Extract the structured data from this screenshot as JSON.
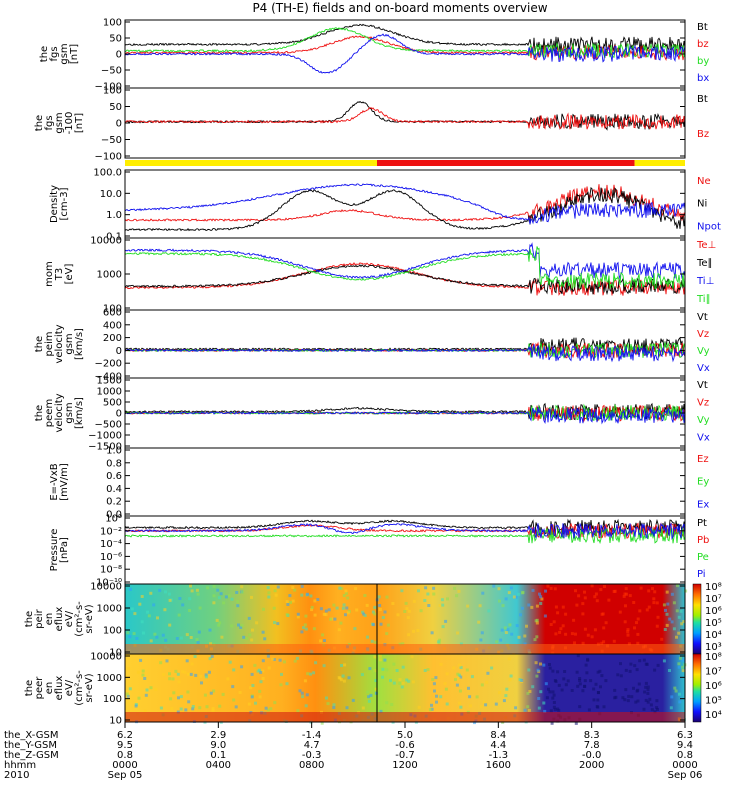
{
  "title": "P4 (TH-E) fields and on-board moments overview",
  "colors": {
    "black": "#000000",
    "red": "#ee1111",
    "green": "#22dd22",
    "blue": "#1111ee",
    "yellow": "#ffee00",
    "white": "#ffffff"
  },
  "chart_data": [
    {
      "type": "line",
      "ylabel": [
        "the",
        "fgs",
        "gsm",
        "[nT]"
      ],
      "yticks": [
        "100",
        "50",
        "0",
        "−50",
        "−100"
      ],
      "ylim": [
        -100,
        100
      ],
      "legend": [
        {
          "name": "Bt",
          "color": "black"
        },
        {
          "name": "bz",
          "color": "red"
        },
        {
          "name": "by",
          "color": "green"
        },
        {
          "name": "bx",
          "color": "blue"
        }
      ]
    },
    {
      "type": "line",
      "ylabel": [
        "the",
        "fgs",
        "gsm",
        "-100",
        "[nT]"
      ],
      "yticks": [
        "100",
        "50",
        "0",
        "−50",
        "−100"
      ],
      "ylim": [
        -125,
        125
      ],
      "legend": [
        {
          "name": "Bt",
          "color": "black"
        },
        {
          "name": "Bz",
          "color": "red"
        }
      ]
    },
    {
      "type": "line",
      "ylabel": [
        "Density",
        "[cm-3]"
      ],
      "yticks": [
        "100.0",
        "10.0",
        "1.0",
        "0.1"
      ],
      "yscale": "log",
      "ylim": [
        0.1,
        100
      ],
      "legend": [
        {
          "name": "Ne",
          "color": "red"
        },
        {
          "name": "Ni",
          "color": "black"
        },
        {
          "name": "Npot",
          "color": "blue"
        }
      ]
    },
    {
      "type": "line",
      "ylabel": [
        "mom",
        "T3",
        "[eV]"
      ],
      "yticks": [
        "10000",
        "1000",
        "100"
      ],
      "yscale": "log",
      "ylim": [
        50,
        10000
      ],
      "legend": [
        {
          "name": "Te⊥",
          "color": "red"
        },
        {
          "name": "Te∥",
          "color": "black"
        },
        {
          "name": "Ti⊥",
          "color": "blue"
        },
        {
          "name": "Ti∥",
          "color": "green"
        }
      ]
    },
    {
      "type": "line",
      "ylabel": [
        "the",
        "peim",
        "velocity",
        "gsm",
        "[km/s]"
      ],
      "yticks": [
        "600",
        "400",
        "200",
        "0",
        "−200",
        "−400"
      ],
      "ylim": [
        -400,
        600
      ],
      "legend": [
        {
          "name": "Vt",
          "color": "black"
        },
        {
          "name": "Vz",
          "color": "red"
        },
        {
          "name": "Vy",
          "color": "green"
        },
        {
          "name": "Vx",
          "color": "blue"
        }
      ]
    },
    {
      "type": "line",
      "ylabel": [
        "the",
        "peem",
        "velocity",
        "gsm",
        "[km/s]"
      ],
      "yticks": [
        "1500",
        "1000",
        "500",
        "0",
        "−500",
        "−1000",
        "−1500"
      ],
      "ylim": [
        -1500,
        1500
      ],
      "legend": [
        {
          "name": "Vt",
          "color": "black"
        },
        {
          "name": "Vz",
          "color": "red"
        },
        {
          "name": "Vy",
          "color": "green"
        },
        {
          "name": "Vx",
          "color": "blue"
        }
      ]
    },
    {
      "type": "line",
      "ylabel": [
        "E=-VxB",
        "[mV/m]"
      ],
      "yticks": [
        "1.0",
        "0.8",
        "0.6",
        "0.4",
        "0.2",
        "0.0"
      ],
      "ylim": [
        0,
        1
      ],
      "legend": [
        {
          "name": "Ez",
          "color": "red"
        },
        {
          "name": "Ey",
          "color": "green"
        },
        {
          "name": "Ex",
          "color": "blue"
        }
      ]
    },
    {
      "type": "line",
      "ylabel": [
        "Pressure",
        "[nPa]"
      ],
      "yticks": [
        "10⁰",
        "10⁻²",
        "10⁻⁴",
        "10⁻⁶",
        "10⁻⁸",
        "10⁻¹⁰"
      ],
      "yscale": "log",
      "legend": [
        {
          "name": "Pt",
          "color": "black"
        },
        {
          "name": "Pb",
          "color": "red"
        },
        {
          "name": "Pe",
          "color": "green"
        },
        {
          "name": "Pi",
          "color": "blue"
        }
      ]
    },
    {
      "type": "heatmap",
      "ylabel": [
        "the",
        "peir",
        "en",
        "eflux",
        "eV/",
        "(cm²-s-",
        "sr-eV)"
      ],
      "yticks": [
        "10000",
        "1000",
        "100",
        "10"
      ],
      "colorbar": [
        "10⁸",
        "10⁷",
        "10⁶",
        "10⁵",
        "10⁴",
        "10³"
      ]
    },
    {
      "type": "heatmap",
      "ylabel": [
        "the",
        "peer",
        "en",
        "eflux",
        "eV/",
        "(cm²-s-",
        "sr-eV)"
      ],
      "yticks": [
        "10000",
        "1000",
        "100",
        "10"
      ],
      "colorbar": [
        "10⁸",
        "10⁷",
        "10⁶",
        "10⁵",
        "10⁴"
      ]
    }
  ],
  "xaxis": {
    "rows": [
      {
        "label": "the_X-GSM",
        "values": [
          "6.2",
          "2.9",
          "-1.4",
          "5.0",
          "8.4",
          "8.3",
          "6.3"
        ]
      },
      {
        "label": "the_Y-GSM",
        "values": [
          "9.5",
          "9.0",
          "4.7",
          "-0.6",
          "4.4",
          "7.8",
          "9.4"
        ]
      },
      {
        "label": "the_Z-GSM",
        "values": [
          "0.8",
          "0.1",
          "-0.3",
          "-0.7",
          "-1.3",
          "-0.0",
          "0.8"
        ]
      },
      {
        "label": "hhmm",
        "values": [
          "0000",
          "0400",
          "0800",
          "1200",
          "1600",
          "2000",
          "0000"
        ]
      }
    ],
    "year": "2010",
    "date_start": "Sep 05",
    "date_end": "Sep 06"
  }
}
